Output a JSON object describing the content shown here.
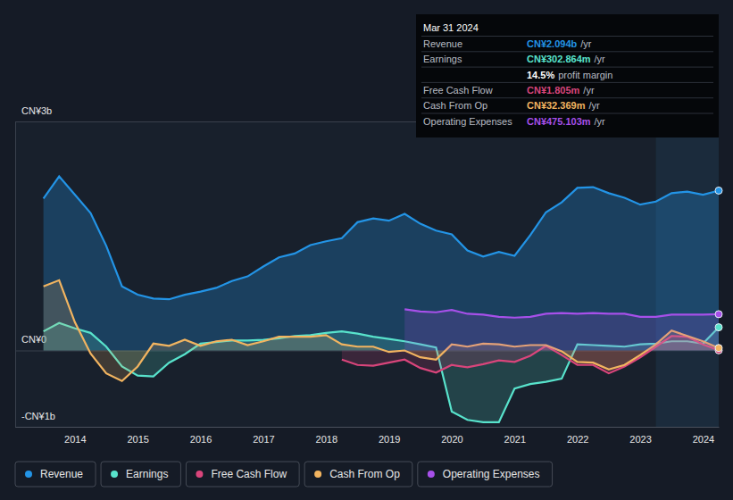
{
  "chart_data": {
    "type": "area",
    "x": [
      2013.5,
      2013.75,
      2014,
      2014.25,
      2014.5,
      2014.75,
      2015,
      2015.25,
      2015.5,
      2015.75,
      2016,
      2016.25,
      2016.5,
      2016.75,
      2017,
      2017.25,
      2017.5,
      2017.75,
      2018,
      2018.25,
      2018.5,
      2018.75,
      2019,
      2019.25,
      2019.5,
      2019.75,
      2020,
      2020.25,
      2020.5,
      2020.75,
      2021,
      2021.25,
      2021.5,
      2021.75,
      2022,
      2022.25,
      2022.5,
      2022.75,
      2023,
      2023.25,
      2023.5,
      2023.75,
      2024,
      2024.25
    ],
    "series": [
      {
        "name": "Revenue",
        "color": "#2394e6",
        "values": [
          1.99,
          2.28,
          2.04,
          1.8,
          1.37,
          0.84,
          0.73,
          0.68,
          0.67,
          0.73,
          0.77,
          0.82,
          0.91,
          0.97,
          1.1,
          1.22,
          1.27,
          1.38,
          1.43,
          1.47,
          1.68,
          1.73,
          1.7,
          1.79,
          1.66,
          1.57,
          1.52,
          1.31,
          1.23,
          1.29,
          1.24,
          1.51,
          1.81,
          1.94,
          2.13,
          2.14,
          2.06,
          2.0,
          1.91,
          1.95,
          2.06,
          2.08,
          2.04,
          2.094
        ]
      },
      {
        "name": "Earnings",
        "color": "#58e3cc",
        "values": [
          0.25,
          0.36,
          0.29,
          0.23,
          0.05,
          -0.21,
          -0.33,
          -0.34,
          -0.16,
          -0.05,
          0.09,
          0.11,
          0.13,
          0.13,
          0.14,
          0.16,
          0.19,
          0.2,
          0.23,
          0.25,
          0.22,
          0.18,
          0.15,
          0.12,
          0.08,
          0.04,
          -0.8,
          -0.91,
          -0.94,
          -0.94,
          -0.5,
          -0.44,
          -0.41,
          -0.37,
          0.08,
          0.07,
          0.06,
          0.05,
          0.08,
          0.09,
          0.12,
          0.12,
          0.09,
          0.303
        ]
      },
      {
        "name": "Free Cash Flow",
        "color": "#d9457b",
        "values": [
          null,
          null,
          null,
          null,
          null,
          null,
          null,
          null,
          null,
          null,
          null,
          null,
          null,
          null,
          null,
          null,
          null,
          null,
          null,
          -0.12,
          -0.19,
          -0.2,
          -0.16,
          -0.12,
          -0.23,
          -0.29,
          -0.19,
          -0.22,
          -0.18,
          -0.13,
          -0.15,
          -0.07,
          0.06,
          -0.06,
          -0.19,
          -0.19,
          -0.3,
          -0.21,
          -0.09,
          0.05,
          0.19,
          0.18,
          0.08,
          0.0018
        ]
      },
      {
        "name": "Cash From Op",
        "color": "#f2b460",
        "values": [
          0.84,
          0.92,
          0.37,
          -0.04,
          -0.3,
          -0.4,
          -0.21,
          0.09,
          0.06,
          0.14,
          0.06,
          0.12,
          0.14,
          0.07,
          0.12,
          0.18,
          0.18,
          0.18,
          0.2,
          0.08,
          0.05,
          0.05,
          -0.02,
          0.0,
          -0.09,
          -0.12,
          0.08,
          0.05,
          0.09,
          0.08,
          0.05,
          0.07,
          0.07,
          -0.01,
          -0.15,
          -0.16,
          -0.25,
          -0.19,
          -0.06,
          0.08,
          0.26,
          0.19,
          0.12,
          0.032
        ]
      },
      {
        "name": "Operating Expenses",
        "color": "#a750ea",
        "values": [
          null,
          null,
          null,
          null,
          null,
          null,
          null,
          null,
          null,
          null,
          null,
          null,
          null,
          null,
          null,
          null,
          null,
          null,
          null,
          null,
          null,
          null,
          null,
          0.54,
          0.51,
          0.5,
          0.53,
          0.48,
          0.47,
          0.44,
          0.43,
          0.44,
          0.48,
          0.49,
          0.48,
          0.49,
          0.48,
          0.48,
          0.44,
          0.44,
          0.47,
          0.47,
          0.47,
          0.475
        ]
      }
    ],
    "xlim": [
      2013.05,
      2024.25
    ],
    "xticks": [
      2014,
      2015,
      2016,
      2017,
      2018,
      2019,
      2020,
      2021,
      2022,
      2023,
      2024
    ],
    "ylim": [
      -1,
      3
    ],
    "yticks": [
      {
        "value": 3,
        "label": "CN¥3b"
      },
      {
        "value": 0,
        "label": "CN¥0"
      },
      {
        "value": -1,
        "label": "-CN¥1b"
      }
    ],
    "grid": true,
    "legend": "bottom",
    "annotations": {
      "title": "Mar 31 2024",
      "rows": [
        {
          "label": "Revenue",
          "value": "CN¥2.094b",
          "unit": "/yr"
        },
        {
          "label": "Earnings",
          "value": "CN¥302.864m",
          "unit": "/yr"
        },
        {
          "value": "14.5%",
          "unit": "profit margin"
        },
        {
          "label": "Free Cash Flow",
          "value": "CN¥1.805m",
          "unit": "/yr"
        },
        {
          "label": "Cash From Op",
          "value": "CN¥32.369m",
          "unit": "/yr"
        },
        {
          "label": "Operating Expenses",
          "value": "CN¥475.103m",
          "unit": "/yr"
        }
      ]
    }
  }
}
